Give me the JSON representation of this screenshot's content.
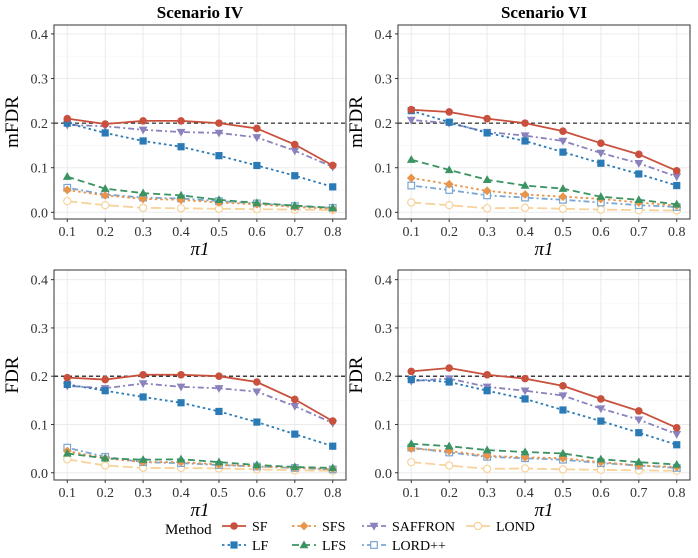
{
  "chart_data": [
    {
      "type": "line",
      "title": "Scenario IV",
      "xlabel": "π1",
      "ylabel": "mFDR",
      "x": [
        0.1,
        0.2,
        0.3,
        0.4,
        0.5,
        0.6,
        0.7,
        0.8
      ],
      "xticks": [
        "0.1",
        "0.2",
        "0.3",
        "0.4",
        "0.5",
        "0.6",
        "0.7",
        "0.8"
      ],
      "yticks": [
        "0.0",
        "0.1",
        "0.2",
        "0.3",
        "0.4"
      ],
      "ylim": [
        -0.015,
        0.42
      ],
      "reference_line": 0.2,
      "series": [
        {
          "name": "SF",
          "values": [
            0.21,
            0.198,
            0.205,
            0.205,
            0.2,
            0.188,
            0.152,
            0.105
          ]
        },
        {
          "name": "LF",
          "values": [
            0.2,
            0.178,
            0.16,
            0.147,
            0.127,
            0.105,
            0.082,
            0.057
          ]
        },
        {
          "name": "SFS",
          "values": [
            0.05,
            0.038,
            0.03,
            0.028,
            0.022,
            0.018,
            0.012,
            0.008
          ]
        },
        {
          "name": "LFS",
          "values": [
            0.08,
            0.053,
            0.043,
            0.038,
            0.028,
            0.021,
            0.015,
            0.01
          ]
        },
        {
          "name": "SAFFRON",
          "values": [
            0.196,
            0.193,
            0.185,
            0.18,
            0.178,
            0.168,
            0.138,
            0.102
          ]
        },
        {
          "name": "LORD++",
          "values": [
            0.055,
            0.04,
            0.033,
            0.031,
            0.025,
            0.02,
            0.014,
            0.01
          ]
        },
        {
          "name": "LOND",
          "values": [
            0.025,
            0.016,
            0.01,
            0.009,
            0.008,
            0.007,
            0.006,
            0.005
          ]
        }
      ]
    },
    {
      "type": "line",
      "title": "Scenario VI",
      "xlabel": "π1",
      "ylabel": "mFDR",
      "x": [
        0.1,
        0.2,
        0.3,
        0.4,
        0.5,
        0.6,
        0.7,
        0.8
      ],
      "xticks": [
        "0.1",
        "0.2",
        "0.3",
        "0.4",
        "0.5",
        "0.6",
        "0.7",
        "0.8"
      ],
      "yticks": [
        "0.0",
        "0.1",
        "0.2",
        "0.3",
        "0.4"
      ],
      "ylim": [
        -0.015,
        0.42
      ],
      "reference_line": 0.2,
      "series": [
        {
          "name": "SF",
          "values": [
            0.23,
            0.225,
            0.21,
            0.2,
            0.182,
            0.155,
            0.13,
            0.093
          ]
        },
        {
          "name": "LF",
          "values": [
            0.228,
            0.202,
            0.178,
            0.16,
            0.135,
            0.11,
            0.086,
            0.06
          ]
        },
        {
          "name": "SFS",
          "values": [
            0.077,
            0.063,
            0.048,
            0.04,
            0.035,
            0.03,
            0.022,
            0.015
          ]
        },
        {
          "name": "LFS",
          "values": [
            0.118,
            0.095,
            0.073,
            0.06,
            0.053,
            0.035,
            0.028,
            0.018
          ]
        },
        {
          "name": "SAFFRON",
          "values": [
            0.207,
            0.2,
            0.18,
            0.172,
            0.16,
            0.133,
            0.11,
            0.08
          ]
        },
        {
          "name": "LORD++",
          "values": [
            0.06,
            0.05,
            0.038,
            0.033,
            0.028,
            0.022,
            0.016,
            0.012
          ]
        },
        {
          "name": "LOND",
          "values": [
            0.022,
            0.016,
            0.009,
            0.01,
            0.008,
            0.006,
            0.005,
            0.004
          ]
        }
      ]
    },
    {
      "type": "line",
      "title": "",
      "xlabel": "π1",
      "ylabel": "FDR",
      "x": [
        0.1,
        0.2,
        0.3,
        0.4,
        0.5,
        0.6,
        0.7,
        0.8
      ],
      "xticks": [
        "0.1",
        "0.2",
        "0.3",
        "0.4",
        "0.5",
        "0.6",
        "0.7",
        "0.8"
      ],
      "yticks": [
        "0.0",
        "0.1",
        "0.2",
        "0.3",
        "0.4"
      ],
      "ylim": [
        -0.015,
        0.42
      ],
      "reference_line": 0.2,
      "series": [
        {
          "name": "SF",
          "values": [
            0.197,
            0.193,
            0.203,
            0.203,
            0.2,
            0.188,
            0.152,
            0.107
          ]
        },
        {
          "name": "LF",
          "values": [
            0.183,
            0.17,
            0.157,
            0.145,
            0.127,
            0.105,
            0.08,
            0.055
          ]
        },
        {
          "name": "SFS",
          "values": [
            0.045,
            0.03,
            0.022,
            0.022,
            0.017,
            0.013,
            0.01,
            0.008
          ]
        },
        {
          "name": "LFS",
          "values": [
            0.04,
            0.03,
            0.027,
            0.028,
            0.022,
            0.016,
            0.012,
            0.01
          ]
        },
        {
          "name": "SAFFRON",
          "values": [
            0.18,
            0.175,
            0.185,
            0.178,
            0.175,
            0.168,
            0.138,
            0.103
          ]
        },
        {
          "name": "LORD++",
          "values": [
            0.052,
            0.033,
            0.022,
            0.02,
            0.016,
            0.013,
            0.01,
            0.007
          ]
        },
        {
          "name": "LOND",
          "values": [
            0.028,
            0.015,
            0.01,
            0.01,
            0.009,
            0.007,
            0.005,
            0.004
          ]
        }
      ]
    },
    {
      "type": "line",
      "title": "",
      "xlabel": "π1",
      "ylabel": "FDR",
      "x": [
        0.1,
        0.2,
        0.3,
        0.4,
        0.5,
        0.6,
        0.7,
        0.8
      ],
      "xticks": [
        "0.1",
        "0.2",
        "0.3",
        "0.4",
        "0.5",
        "0.6",
        "0.7",
        "0.8"
      ],
      "yticks": [
        "0.0",
        "0.1",
        "0.2",
        "0.3",
        "0.4"
      ],
      "ylim": [
        -0.015,
        0.42
      ],
      "reference_line": 0.2,
      "series": [
        {
          "name": "SF",
          "values": [
            0.21,
            0.217,
            0.203,
            0.195,
            0.18,
            0.153,
            0.128,
            0.093
          ]
        },
        {
          "name": "LF",
          "values": [
            0.193,
            0.188,
            0.17,
            0.153,
            0.13,
            0.107,
            0.083,
            0.058
          ]
        },
        {
          "name": "SFS",
          "values": [
            0.05,
            0.045,
            0.035,
            0.032,
            0.03,
            0.022,
            0.015,
            0.012
          ]
        },
        {
          "name": "LFS",
          "values": [
            0.06,
            0.055,
            0.047,
            0.043,
            0.04,
            0.028,
            0.022,
            0.017
          ]
        },
        {
          "name": "SAFFRON",
          "values": [
            0.19,
            0.195,
            0.178,
            0.17,
            0.16,
            0.133,
            0.11,
            0.08
          ]
        },
        {
          "name": "LORD++",
          "values": [
            0.052,
            0.042,
            0.033,
            0.03,
            0.027,
            0.02,
            0.015,
            0.01
          ]
        },
        {
          "name": "LOND",
          "values": [
            0.022,
            0.015,
            0.008,
            0.009,
            0.007,
            0.006,
            0.005,
            0.004
          ]
        }
      ]
    }
  ],
  "legend": {
    "title": "Method",
    "entries": [
      "SF",
      "LF",
      "SFS",
      "LFS",
      "SAFFRON",
      "LORD++",
      "LOND"
    ]
  },
  "styles": {
    "SF": {
      "color": "#c8503c",
      "dash": "solid",
      "marker": "circle"
    },
    "LF": {
      "color": "#2a7ab5",
      "dash": "dot",
      "marker": "square"
    },
    "SFS": {
      "color": "#e8944a",
      "dash": "dot",
      "marker": "diamond"
    },
    "LFS": {
      "color": "#3a9462",
      "dash": "dash",
      "marker": "triangle"
    },
    "SAFFRON": {
      "color": "#8a82bd",
      "dash": "dotdash",
      "marker": "triangle-down"
    },
    "LORD++": {
      "color": "#7aa6d4",
      "dash": "dotdash",
      "marker": "square-open"
    },
    "LOND": {
      "color": "#f7d39b",
      "dash": "longdash",
      "marker": "circle-open"
    }
  }
}
